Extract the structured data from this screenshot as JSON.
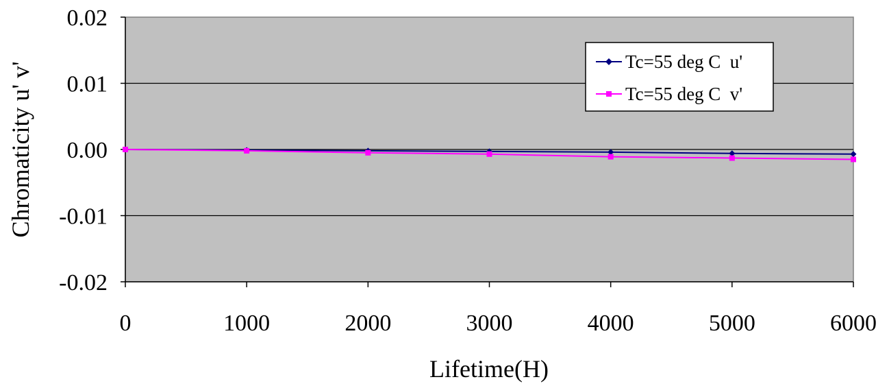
{
  "chart_data": {
    "type": "line",
    "title": "",
    "xlabel": "Lifetime(H)",
    "ylabel": "Chromaticity u' v'",
    "x": [
      0,
      1000,
      2000,
      3000,
      4000,
      5000,
      6000
    ],
    "xlim": [
      0,
      6000
    ],
    "ylim": [
      -0.02,
      0.02
    ],
    "x_ticks": [
      "0",
      "1000",
      "2000",
      "3000",
      "4000",
      "5000",
      "6000"
    ],
    "y_ticks": [
      "0.02",
      "0.01",
      "0.00",
      "-0.01",
      "-0.02"
    ],
    "grid": "horizontal",
    "legend_position": "top-right",
    "plot_background": "#c0c0c0",
    "series": [
      {
        "name": "Tc=55 deg C  u'",
        "color": "#000080",
        "marker": "diamond",
        "values": [
          0.0,
          -0.0001,
          -0.0002,
          -0.0003,
          -0.0004,
          -0.0006,
          -0.0007
        ]
      },
      {
        "name": "Tc=55 deg C  v'",
        "color": "#ff00ff",
        "marker": "square",
        "values": [
          0.0,
          -0.0002,
          -0.0005,
          -0.0007,
          -0.0011,
          -0.0013,
          -0.0015
        ]
      }
    ]
  }
}
